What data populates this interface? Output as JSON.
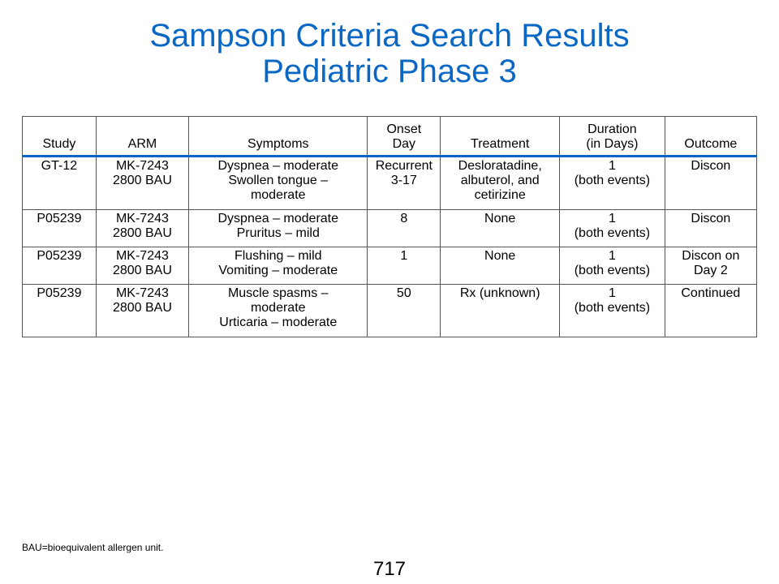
{
  "title": {
    "line1": "Sampson Criteria Search Results",
    "line2": "Pediatric Phase 3"
  },
  "table": {
    "headers": [
      "Study",
      "ARM",
      "Symptoms",
      "Onset\nDay",
      "Treatment",
      "Duration\n(in Days)",
      "Outcome"
    ],
    "rows": [
      [
        "GT-12",
        "MK-7243\n2800 BAU",
        "Dyspnea – moderate\nSwollen tongue –\nmoderate",
        "Recurrent\n3-17",
        "Desloratadine,\nalbuterol, and\ncetirizine",
        "1\n(both events)",
        "Discon"
      ],
      [
        "P05239",
        "MK-7243\n2800 BAU",
        "Dyspnea – moderate\nPruritus – mild",
        "8",
        "None",
        "1\n(both events)",
        "Discon"
      ],
      [
        "P05239",
        "MK-7243\n2800 BAU",
        "Flushing – mild\nVomiting – moderate",
        "1",
        "None",
        "1\n(both events)",
        "Discon on\nDay 2"
      ],
      [
        "P05239",
        "MK-7243\n2800 BAU",
        "Muscle spasms –\nmoderate\nUrticaria – moderate",
        "50",
        "Rx (unknown)",
        "1\n(both events)",
        "Continued"
      ]
    ]
  },
  "footnote": "BAU=bioequivalent allergen unit.",
  "page_number": "717",
  "colors": {
    "title": "#0a68c4",
    "header_rule": "#0a68c4"
  }
}
